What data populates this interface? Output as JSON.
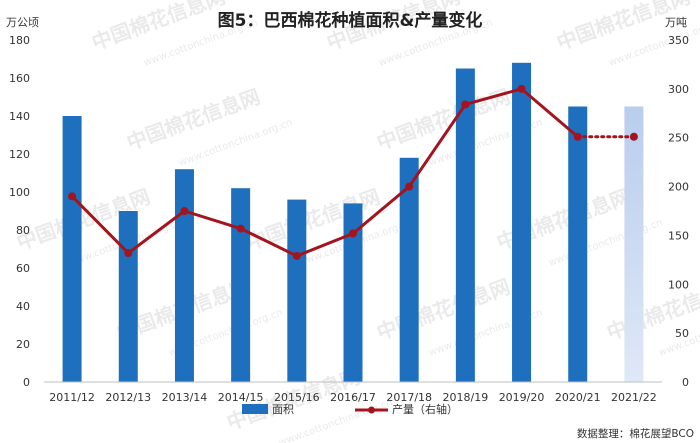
{
  "chart_data": {
    "type": "bar",
    "title": "图5：巴西棉花种植面积&产量变化",
    "categories": [
      "2011/12",
      "2012/13",
      "2013/14",
      "2014/15",
      "2015/16",
      "2016/17",
      "2017/18",
      "2018/19",
      "2019/20",
      "2020/21",
      "2021/22"
    ],
    "y_left": {
      "unit": "万公顷",
      "ylim": [
        0,
        180
      ],
      "ticks": [
        0,
        20,
        40,
        60,
        80,
        100,
        120,
        140,
        160,
        180
      ]
    },
    "y_right": {
      "unit": "万吨",
      "ylim": [
        0,
        350
      ],
      "ticks": [
        0,
        50,
        100,
        150,
        200,
        250,
        300,
        350
      ]
    },
    "series": [
      {
        "name": "面积",
        "type": "bar",
        "axis": "left",
        "color": "#1f6fbf",
        "forecast_color": "#b9cdee",
        "values": [
          140,
          90,
          112,
          102,
          96,
          94,
          118,
          165,
          168,
          145,
          145
        ],
        "forecast_from_index": 10
      },
      {
        "name": "产量（右轴）",
        "type": "line",
        "axis": "right",
        "color": "#a3141d",
        "values": [
          190,
          132,
          175,
          157,
          129,
          152,
          200,
          284,
          300,
          251,
          251
        ],
        "dotted_from_index": 9
      }
    ],
    "legend_position": "bottom",
    "grid": false
  },
  "source_note": "数据整理：棉花展望BCO",
  "watermark": {
    "text": "中国棉花信息网",
    "url": "www.cottonchina.org.cn",
    "color": "#d8d8d8"
  }
}
